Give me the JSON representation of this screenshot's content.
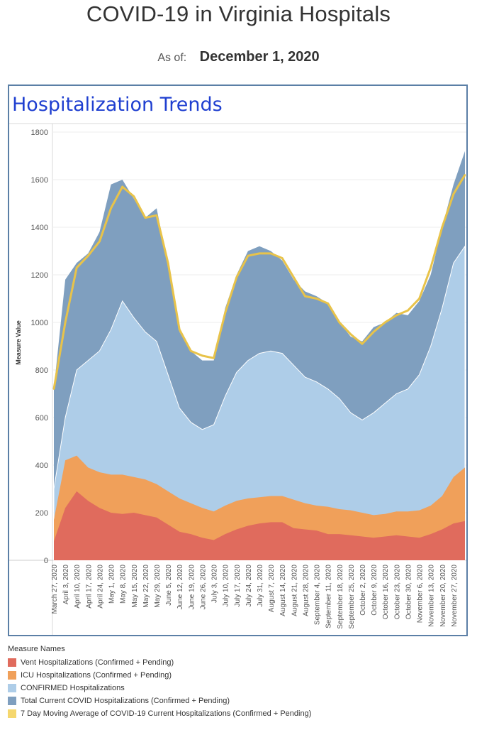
{
  "header": {
    "title": "COVID-19 in Virginia Hospitals",
    "as_of_label": "As of:",
    "as_of_date": "December 1, 2020"
  },
  "panel": {
    "title": "Hospitalization Trends"
  },
  "legend": {
    "title": "Measure Names",
    "items": [
      {
        "label": "Vent Hospitalizations (Confirmed + Pending)",
        "color": "#e06b5d"
      },
      {
        "label": "ICU Hospitalizations (Confirmed + Pending)",
        "color": "#f0a05a"
      },
      {
        "label": "CONFIRMED Hospitalizations",
        "color": "#aecde8"
      },
      {
        "label": "Total Current COVID Hospitalizations (Confirmed + Pending)",
        "color": "#7f9fbf"
      },
      {
        "label": "7 Day Moving Average of COVID-19 Current Hospitalizations (Confirmed + Pending)",
        "color": "#f5d76e"
      }
    ]
  },
  "chart_data": {
    "type": "area",
    "ylabel": "Measure Value",
    "ylim": [
      0,
      1800
    ],
    "yticks": [
      0,
      200,
      400,
      600,
      800,
      1000,
      1200,
      1400,
      1600,
      1800
    ],
    "grid": true,
    "legend_position": "bottom",
    "x_tick_labels": [
      "March 27, 2020",
      "April 3, 2020",
      "April 10, 2020",
      "April 17, 2020",
      "April 24, 2020",
      "May 1, 2020",
      "May 8, 2020",
      "May 15, 2020",
      "May 22, 2020",
      "May 29, 2020",
      "June 5, 2020",
      "June 12, 2020",
      "June 19, 2020",
      "June 26, 2020",
      "July 3, 2020",
      "July 10, 2020",
      "July 17, 2020",
      "July 24, 2020",
      "July 31, 2020",
      "August 7, 2020",
      "August 14, 2020",
      "August 21, 2020",
      "August 28, 2020",
      "September 4, 2020",
      "September 11, 2020",
      "September 18, 2020",
      "September 25, 2020",
      "October 2, 2020",
      "October 9, 2020",
      "October 16, 2020",
      "October 23, 2020",
      "October 30, 2020",
      "November 6, 2020",
      "November 13, 2020",
      "November 20, 2020",
      "November 27, 2020"
    ],
    "x": [
      "March 27, 2020",
      "April 3, 2020",
      "April 10, 2020",
      "April 17, 2020",
      "April 24, 2020",
      "May 1, 2020",
      "May 8, 2020",
      "May 15, 2020",
      "May 22, 2020",
      "May 29, 2020",
      "June 5, 2020",
      "June 12, 2020",
      "June 19, 2020",
      "June 26, 2020",
      "July 3, 2020",
      "July 10, 2020",
      "July 17, 2020",
      "July 24, 2020",
      "July 31, 2020",
      "August 7, 2020",
      "August 14, 2020",
      "August 21, 2020",
      "August 28, 2020",
      "September 4, 2020",
      "September 11, 2020",
      "September 18, 2020",
      "September 25, 2020",
      "October 2, 2020",
      "October 9, 2020",
      "October 16, 2020",
      "October 23, 2020",
      "October 30, 2020",
      "November 6, 2020",
      "November 13, 2020",
      "November 20, 2020",
      "November 27, 2020",
      "December 1, 2020"
    ],
    "series": [
      {
        "name": "Vent Hospitalizations (Confirmed + Pending)",
        "color": "#e06b5d",
        "values": [
          80,
          220,
          290,
          250,
          220,
          200,
          195,
          200,
          190,
          180,
          150,
          120,
          110,
          95,
          85,
          110,
          130,
          145,
          155,
          160,
          160,
          135,
          130,
          125,
          110,
          110,
          105,
          100,
          95,
          100,
          105,
          100,
          95,
          110,
          130,
          155,
          165
        ]
      },
      {
        "name": "ICU Hospitalizations (Confirmed + Pending)",
        "color": "#f0a05a",
        "values": [
          170,
          420,
          440,
          390,
          370,
          360,
          360,
          350,
          340,
          320,
          290,
          260,
          240,
          220,
          205,
          230,
          250,
          260,
          265,
          270,
          270,
          255,
          240,
          230,
          225,
          215,
          210,
          200,
          190,
          195,
          205,
          205,
          210,
          230,
          270,
          350,
          390
        ]
      },
      {
        "name": "CONFIRMED Hospitalizations",
        "color": "#aecde8",
        "values": [
          300,
          600,
          800,
          840,
          880,
          970,
          1090,
          1020,
          960,
          920,
          780,
          640,
          580,
          550,
          570,
          690,
          790,
          840,
          870,
          880,
          870,
          820,
          770,
          750,
          720,
          680,
          620,
          590,
          620,
          660,
          700,
          720,
          780,
          900,
          1060,
          1250,
          1320
        ]
      },
      {
        "name": "Total Current COVID Hospitalizations (Confirmed + Pending)",
        "color": "#7f9fbf",
        "values": [
          720,
          1180,
          1250,
          1290,
          1380,
          1580,
          1600,
          1520,
          1440,
          1480,
          1240,
          960,
          880,
          840,
          840,
          1060,
          1200,
          1300,
          1320,
          1300,
          1260,
          1180,
          1130,
          1110,
          1080,
          1000,
          940,
          920,
          980,
          1000,
          1040,
          1030,
          1090,
          1200,
          1400,
          1580,
          1720
        ]
      },
      {
        "name": "7 Day Moving Average of COVID-19 Current Hospitalizations (Confirmed + Pending)",
        "color": "#f5d76e",
        "values": [
          720,
          1000,
          1230,
          1280,
          1340,
          1480,
          1570,
          1530,
          1440,
          1450,
          1250,
          970,
          880,
          860,
          850,
          1040,
          1190,
          1280,
          1290,
          1290,
          1270,
          1190,
          1110,
          1100,
          1080,
          1000,
          950,
          910,
          960,
          1000,
          1030,
          1050,
          1100,
          1230,
          1400,
          1540,
          1620
        ]
      }
    ]
  }
}
